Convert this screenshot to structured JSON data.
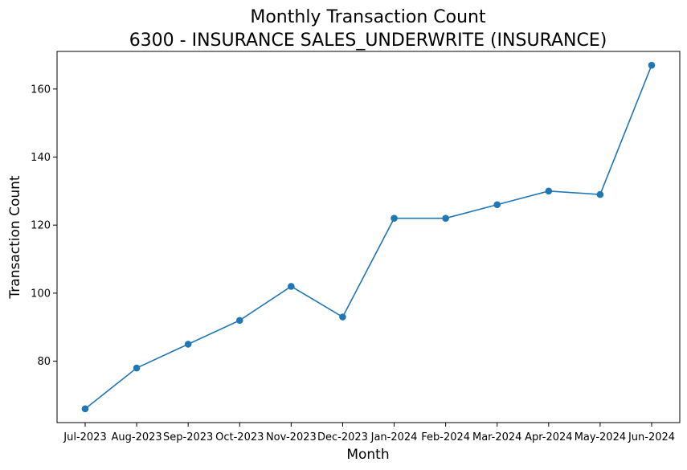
{
  "chart_data": {
    "type": "line",
    "title": "Monthly Transaction Count",
    "subtitle": "6300 - INSURANCE SALES_UNDERWRITE (INSURANCE)",
    "xlabel": "Month",
    "ylabel": "Transaction Count",
    "categories": [
      "Jul-2023",
      "Aug-2023",
      "Sep-2023",
      "Oct-2023",
      "Nov-2023",
      "Dec-2023",
      "Jan-2024",
      "Feb-2024",
      "Mar-2024",
      "Apr-2024",
      "May-2024",
      "Jun-2024"
    ],
    "series": [
      {
        "values": [
          66,
          78,
          85,
          92,
          102,
          93,
          122,
          122,
          126,
          130,
          129,
          167
        ],
        "color": "#1f77b4",
        "marker": "circle"
      }
    ],
    "yticks": [
      80,
      100,
      120,
      140,
      160
    ],
    "ylim": [
      61.95,
      171.05
    ],
    "grid": false,
    "legend": "none"
  }
}
